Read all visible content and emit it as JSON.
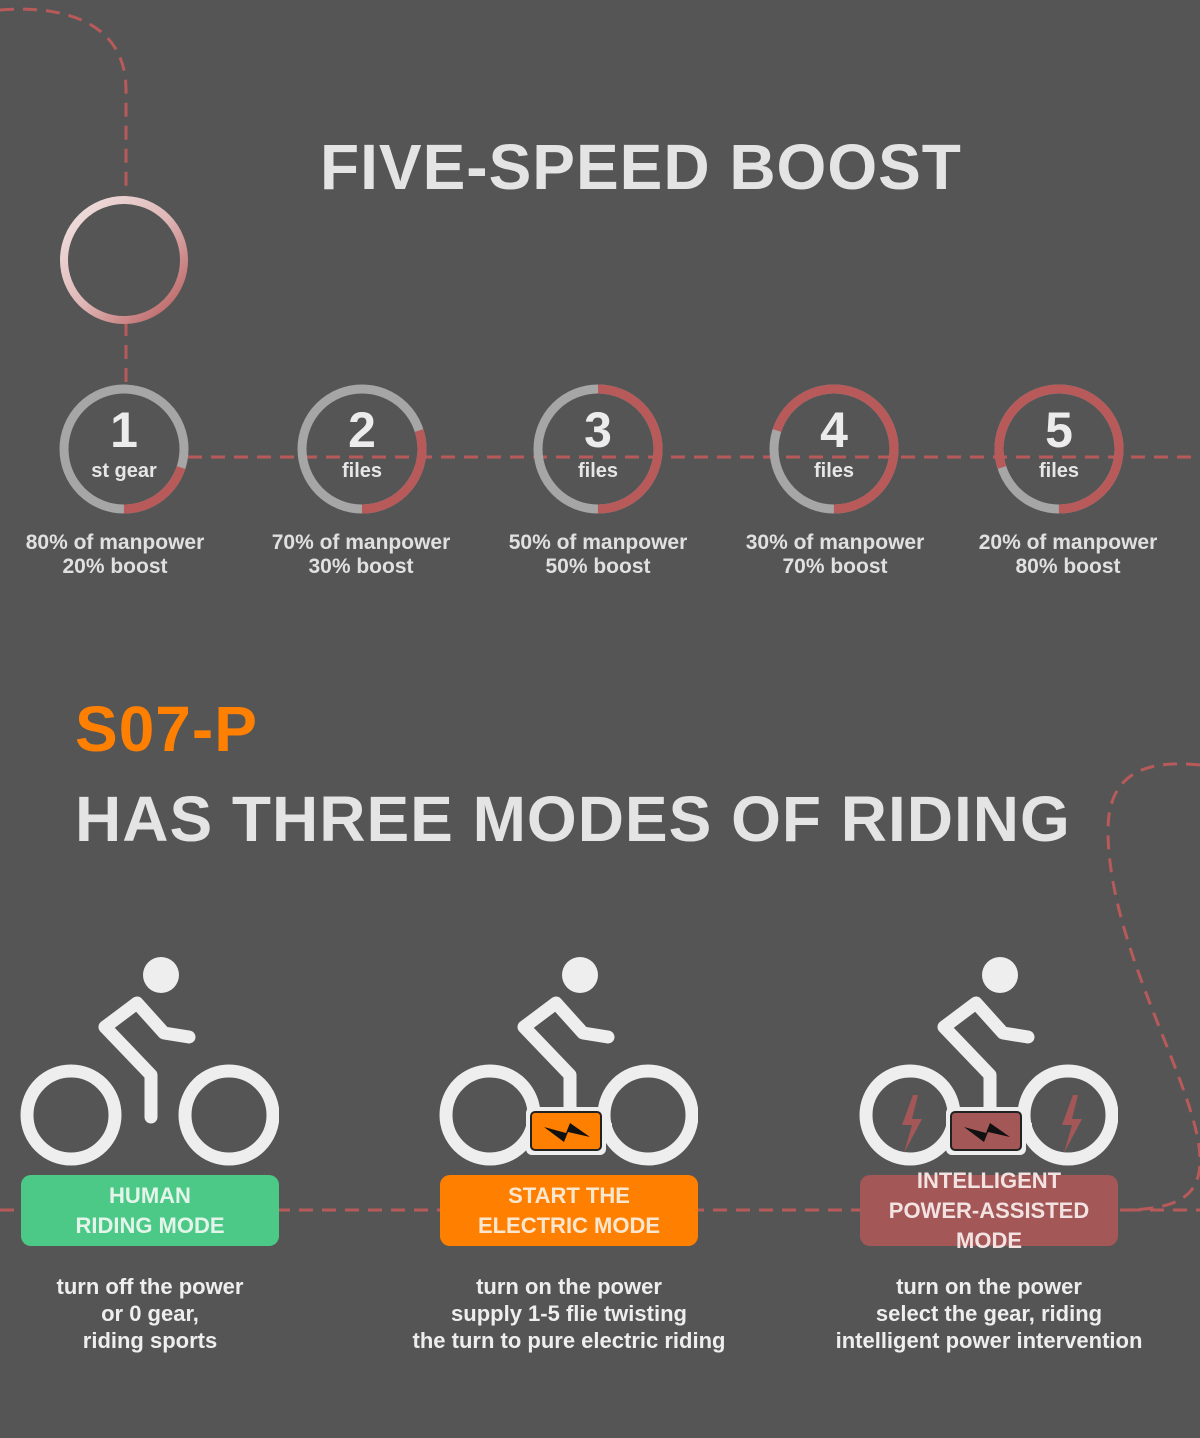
{
  "colors": {
    "background": "#555555",
    "accent_red": "#b85a5a",
    "ring_gray": "#a6a6a6",
    "orange": "#ff8000",
    "green": "#4cc987",
    "red_mode": "#a35757"
  },
  "boost": {
    "title": "FIVE-SPEED BOOST",
    "gears": [
      {
        "number": "1",
        "unit": "st gear",
        "manpower": "80% of manpower",
        "boost": "20% boost",
        "boost_percent": 20
      },
      {
        "number": "2",
        "unit": "files",
        "manpower": "70% of manpower",
        "boost": "30% boost",
        "boost_percent": 30
      },
      {
        "number": "3",
        "unit": "files",
        "manpower": "50% of manpower",
        "boost": "50% boost",
        "boost_percent": 50
      },
      {
        "number": "4",
        "unit": "files",
        "manpower": "30% of manpower",
        "boost": "70% boost",
        "boost_percent": 70
      },
      {
        "number": "5",
        "unit": "files",
        "manpower": "20% of manpower",
        "boost": "80% boost",
        "boost_percent": 80
      }
    ]
  },
  "riding": {
    "model": "S07-P",
    "title": "HAS THREE MODES OF RIDING",
    "modes": [
      {
        "label": "HUMAN\nRIDING MODE",
        "description": [
          "turn off the power",
          "or 0 gear,",
          "riding sports"
        ],
        "color": "#4cc987",
        "text_color": "#e3f5ea",
        "icon": "cyclist-icon"
      },
      {
        "label": "START THE\nELECTRIC MODE",
        "description": [
          "turn on the power",
          "supply 1-5 flie twisting",
          "the turn to pure electric riding"
        ],
        "color": "#ff8000",
        "text_color": "#fbe6cf",
        "icon": "electric-cyclist-icon"
      },
      {
        "label": "INTELLIGENT\nPOWER-ASSISTED MODE",
        "description": [
          "turn on the power",
          "select the gear, riding",
          "intelligent power intervention"
        ],
        "color": "#a35757",
        "text_color": "#f3e2e2",
        "icon": "power-assist-cyclist-icon"
      }
    ]
  }
}
